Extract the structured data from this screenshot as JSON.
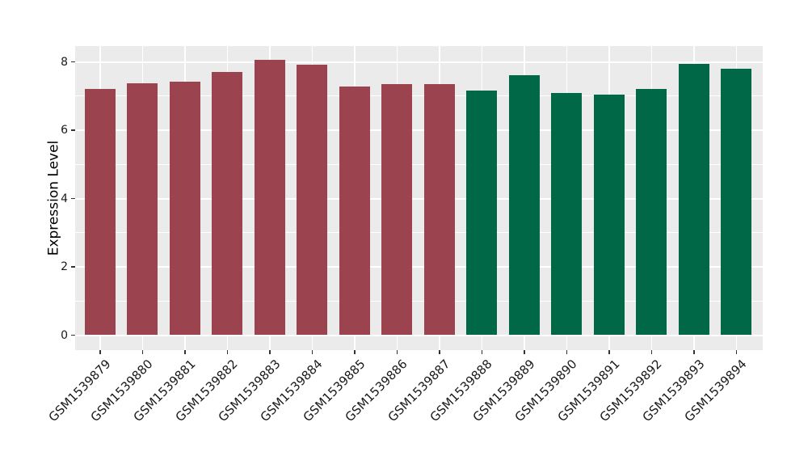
{
  "chart_data": {
    "type": "bar",
    "title": "",
    "xlabel": "",
    "ylabel": "Expression Level",
    "categories": [
      "GSM1539879",
      "GSM1539880",
      "GSM1539881",
      "GSM1539882",
      "GSM1539883",
      "GSM1539884",
      "GSM1539885",
      "GSM1539886",
      "GSM1539887",
      "GSM1539888",
      "GSM1539889",
      "GSM1539890",
      "GSM1539891",
      "GSM1539892",
      "GSM1539893",
      "GSM1539894"
    ],
    "values": [
      7.21,
      7.37,
      7.42,
      7.7,
      8.06,
      7.91,
      7.28,
      7.36,
      7.35,
      7.15,
      7.6,
      7.08,
      7.05,
      7.21,
      7.93,
      7.81
    ],
    "bar_colors": [
      "#9B4450",
      "#9B4450",
      "#9B4450",
      "#9B4450",
      "#9B4450",
      "#9B4450",
      "#9B4450",
      "#9B4450",
      "#9B4450",
      "#016847",
      "#016847",
      "#016847",
      "#016847",
      "#016847",
      "#016847",
      "#016847"
    ],
    "group_colors": {
      "group1": "#9B4450",
      "group2": "#016847"
    },
    "yticks": [
      0,
      2,
      4,
      6,
      8
    ],
    "ytick_labels": [
      "0",
      "2",
      "4",
      "6",
      "8"
    ],
    "minor_yticks": [
      1,
      3,
      5,
      7
    ],
    "ylim": [
      0,
      8.45
    ],
    "grid": true,
    "legend": "none",
    "panel_bg": "#EBEBEB",
    "grid_color": "#FFFFFF"
  }
}
